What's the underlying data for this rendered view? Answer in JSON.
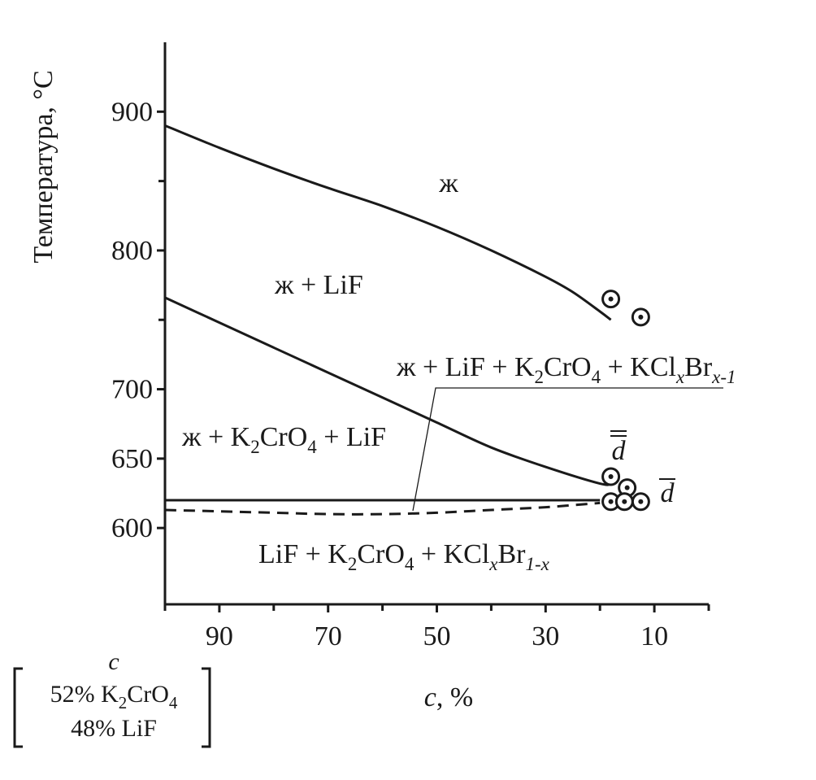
{
  "chart_data": {
    "type": "line",
    "y_axis_label": "Температура, °С",
    "x_axis_label_italic": "c",
    "x_axis_label_rest": ", %",
    "x_ticks": [
      {
        "value": 90,
        "label": "90"
      },
      {
        "value": 70,
        "label": "70"
      },
      {
        "value": 50,
        "label": "50"
      },
      {
        "value": 30,
        "label": "30"
      },
      {
        "value": 10,
        "label": "10"
      }
    ],
    "x_minor_ticks": [
      100,
      80,
      60,
      40,
      20,
      0
    ],
    "y_ticks": [
      {
        "value": 900,
        "label": "900"
      },
      {
        "value": 800,
        "label": "800"
      },
      {
        "value": 700,
        "label": "700"
      },
      {
        "value": 650,
        "label": "650"
      },
      {
        "value": 600,
        "label": "600"
      }
    ],
    "y_minor_ticks": [
      850,
      750
    ],
    "xlim": [
      100,
      0
    ],
    "ylim": [
      545,
      950
    ],
    "series": [
      {
        "id": "liquidus",
        "style": "solid",
        "x": [
          100,
          90,
          80,
          70,
          60,
          50,
          40,
          30,
          25,
          20,
          18
        ],
        "y": [
          890,
          874,
          859,
          845,
          832,
          817,
          800,
          781,
          770,
          756,
          750
        ]
      },
      {
        "id": "secondary",
        "style": "solid",
        "x": [
          100,
          90,
          80,
          70,
          60,
          50,
          40,
          30,
          20,
          18
        ],
        "y": [
          766,
          748,
          730,
          712,
          694,
          676,
          658,
          644,
          632,
          632
        ]
      },
      {
        "id": "eutectic",
        "style": "solid",
        "x": [
          100,
          20
        ],
        "y": [
          620,
          620
        ]
      },
      {
        "id": "solidus",
        "style": "dashed",
        "x": [
          100,
          90,
          80,
          70,
          60,
          50,
          40,
          30,
          20
        ],
        "y": [
          613,
          612,
          611,
          610,
          610,
          611,
          613,
          615,
          618
        ]
      }
    ],
    "points": [
      {
        "x": 18,
        "y": 765
      },
      {
        "x": 12.5,
        "y": 752
      },
      {
        "x": 18,
        "y": 637
      },
      {
        "x": 15,
        "y": 629
      },
      {
        "x": 18,
        "y": 619
      },
      {
        "x": 15.5,
        "y": 619
      },
      {
        "x": 12.5,
        "y": 619
      }
    ],
    "region_labels": {
      "liquid": "ж",
      "liquid_lif": "ж + LiF",
      "liq_lif_k2cro4_kclbr": {
        "lead": "ж + LiF + K",
        "sub1": "2",
        "mid1": "CrO",
        "sub2": "4",
        "mid2": " + KCl",
        "sub3": "x",
        "mid3": "Br",
        "sub4": "x-1"
      },
      "liq_k2cro4_lif": {
        "lead": "ж + K",
        "sub1": "2",
        "mid1": "CrO",
        "sub2": "4",
        "tail": " + LiF"
      },
      "solid": {
        "lead": "LiF + K",
        "sub1": "2",
        "mid1": "CrO",
        "sub2": "4",
        "mid2": " + KCl",
        "sub3": "x",
        "mid3": "Br",
        "sub4": "1-x"
      }
    },
    "point_labels": {
      "double_bar": "d",
      "single_bar": "d"
    },
    "component_box": {
      "label": "c",
      "line1_lead": "52% K",
      "line1_sub1": "2",
      "line1_mid": "CrO",
      "line1_sub2": "4",
      "line2": "48% LiF"
    }
  }
}
